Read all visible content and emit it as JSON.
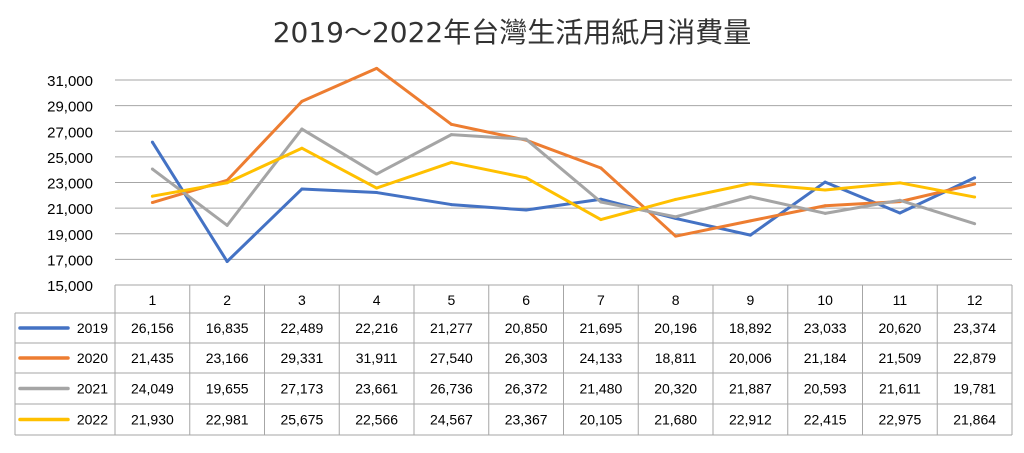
{
  "chart_data": {
    "type": "line",
    "title": "2019～2022年台灣生活用紙月消費量",
    "xlabel": "",
    "ylabel": "",
    "categories": [
      "1",
      "2",
      "3",
      "4",
      "5",
      "6",
      "7",
      "8",
      "9",
      "10",
      "11",
      "12"
    ],
    "ylim": [
      15000,
      31000
    ],
    "yticks": [
      "15,000",
      "17,000",
      "19,000",
      "21,000",
      "23,000",
      "25,000",
      "27,000",
      "29,000",
      "31,000"
    ],
    "grid": true,
    "legend": "data-table-left",
    "series": [
      {
        "name": "2019",
        "color": "#4472C4",
        "values": [
          26156,
          16835,
          22489,
          22216,
          21277,
          20850,
          21695,
          20196,
          18892,
          23033,
          20620,
          23374
        ],
        "labels": [
          "26,156",
          "16,835",
          "22,489",
          "22,216",
          "21,277",
          "20,850",
          "21,695",
          "20,196",
          "18,892",
          "23,033",
          "20,620",
          "23,374"
        ]
      },
      {
        "name": "2020",
        "color": "#ED7D31",
        "values": [
          21435,
          23166,
          29331,
          31911,
          27540,
          26303,
          24133,
          18811,
          20006,
          21184,
          21509,
          22879
        ],
        "labels": [
          "21,435",
          "23,166",
          "29,331",
          "31,911",
          "27,540",
          "26,303",
          "24,133",
          "18,811",
          "20,006",
          "21,184",
          "21,509",
          "22,879"
        ]
      },
      {
        "name": "2021",
        "color": "#A5A5A5",
        "values": [
          24049,
          19655,
          27173,
          23661,
          26736,
          26372,
          21480,
          20320,
          21887,
          20593,
          21611,
          19781
        ],
        "labels": [
          "24,049",
          "19,655",
          "27,173",
          "23,661",
          "26,736",
          "26,372",
          "21,480",
          "20,320",
          "21,887",
          "20,593",
          "21,611",
          "19,781"
        ]
      },
      {
        "name": "2022",
        "color": "#FFC000",
        "values": [
          21930,
          22981,
          25675,
          22566,
          24567,
          23367,
          20105,
          21680,
          22912,
          22415,
          22975,
          21864
        ],
        "labels": [
          "21,930",
          "22,981",
          "25,675",
          "22,566",
          "24,567",
          "23,367",
          "20,105",
          "21,680",
          "22,912",
          "22,415",
          "22,975",
          "21,864"
        ]
      }
    ]
  }
}
